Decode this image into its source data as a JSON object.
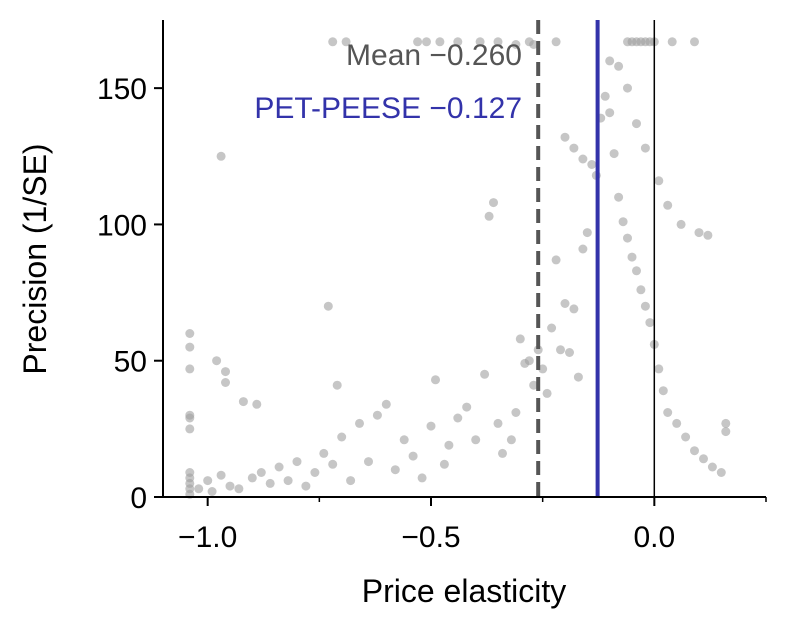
{
  "chart_data": {
    "type": "scatter",
    "title": "",
    "xlabel": "Price elasticity",
    "ylabel": "Precision (1/SE)",
    "xlim": [
      -1.1,
      0.25
    ],
    "ylim": [
      0,
      175
    ],
    "x_ticks": [
      {
        "value": -1.0,
        "label": "−1.0"
      },
      {
        "value": -0.5,
        "label": "−0.5"
      },
      {
        "value": 0.0,
        "label": "0.0"
      }
    ],
    "x_minor_ticks": [
      -0.75,
      -0.25,
      0.25
    ],
    "y_ticks": [
      {
        "value": 0,
        "label": "0"
      },
      {
        "value": 50,
        "label": "50"
      },
      {
        "value": 100,
        "label": "100"
      },
      {
        "value": 150,
        "label": "150"
      }
    ],
    "grid": false,
    "point_color": "#a0a0a0",
    "reference_lines": [
      {
        "name": "Mean",
        "x": -0.26,
        "label": "Mean −0.260",
        "style": "dashed",
        "color": "#555555"
      },
      {
        "name": "PET-PEESE",
        "x": -0.127,
        "label": "PET-PEESE −0.127",
        "style": "solid",
        "color": "#3333aa"
      },
      {
        "name": "zero",
        "x": 0.0,
        "style": "solid",
        "color": "#000000"
      }
    ],
    "points_xy": [
      [
        -1.04,
        60
      ],
      [
        -1.04,
        55
      ],
      [
        -1.04,
        47
      ],
      [
        -1.04,
        30
      ],
      [
        -1.04,
        29
      ],
      [
        -1.04,
        25
      ],
      [
        -1.04,
        9
      ],
      [
        -1.04,
        7
      ],
      [
        -1.04,
        5
      ],
      [
        -1.04,
        3
      ],
      [
        -1.04,
        1
      ],
      [
        -0.98,
        50
      ],
      [
        -0.96,
        46
      ],
      [
        -0.96,
        42
      ],
      [
        -0.92,
        35
      ],
      [
        -0.89,
        34
      ],
      [
        -0.97,
        125
      ],
      [
        -1.02,
        3
      ],
      [
        -1.0,
        6
      ],
      [
        -0.99,
        2
      ],
      [
        -0.97,
        8
      ],
      [
        -0.95,
        4
      ],
      [
        -0.93,
        3
      ],
      [
        -0.9,
        7
      ],
      [
        -0.88,
        9
      ],
      [
        -0.86,
        5
      ],
      [
        -0.84,
        11
      ],
      [
        -0.82,
        6
      ],
      [
        -0.8,
        13
      ],
      [
        -0.78,
        4
      ],
      [
        -0.76,
        9
      ],
      [
        -0.74,
        16
      ],
      [
        -0.73,
        70
      ],
      [
        -0.72,
        12
      ],
      [
        -0.71,
        41
      ],
      [
        -0.7,
        22
      ],
      [
        -0.68,
        6
      ],
      [
        -0.66,
        27
      ],
      [
        -0.64,
        13
      ],
      [
        -0.62,
        30
      ],
      [
        -0.6,
        34
      ],
      [
        -0.58,
        10
      ],
      [
        -0.56,
        21
      ],
      [
        -0.54,
        15
      ],
      [
        -0.52,
        7
      ],
      [
        -0.5,
        26
      ],
      [
        -0.49,
        43
      ],
      [
        -0.47,
        12
      ],
      [
        -0.46,
        19
      ],
      [
        -0.44,
        29
      ],
      [
        -0.42,
        33
      ],
      [
        -0.4,
        21
      ],
      [
        -0.38,
        45
      ],
      [
        -0.37,
        103
      ],
      [
        -0.36,
        108
      ],
      [
        -0.35,
        27
      ],
      [
        -0.34,
        16
      ],
      [
        -0.32,
        21
      ],
      [
        -0.31,
        31
      ],
      [
        -0.3,
        58
      ],
      [
        -0.29,
        49
      ],
      [
        -0.28,
        50
      ],
      [
        -0.27,
        41
      ],
      [
        -0.26,
        54
      ],
      [
        -0.25,
        47
      ],
      [
        -0.24,
        38
      ],
      [
        -0.23,
        62
      ],
      [
        -0.22,
        87
      ],
      [
        -0.21,
        54
      ],
      [
        -0.2,
        71
      ],
      [
        -0.19,
        53
      ],
      [
        -0.18,
        69
      ],
      [
        -0.17,
        44
      ],
      [
        -0.16,
        91
      ],
      [
        -0.15,
        97
      ],
      [
        -0.14,
        122
      ],
      [
        -0.13,
        118
      ],
      [
        -0.12,
        139
      ],
      [
        -0.11,
        147
      ],
      [
        -0.1,
        141
      ],
      [
        -0.09,
        126
      ],
      [
        -0.08,
        110
      ],
      [
        -0.07,
        101
      ],
      [
        -0.06,
        95
      ],
      [
        -0.05,
        88
      ],
      [
        -0.04,
        83
      ],
      [
        -0.03,
        76
      ],
      [
        -0.02,
        70
      ],
      [
        -0.01,
        64
      ],
      [
        0.0,
        56
      ],
      [
        0.01,
        47
      ],
      [
        0.02,
        39
      ],
      [
        0.03,
        31
      ],
      [
        0.05,
        27
      ],
      [
        0.07,
        22
      ],
      [
        0.09,
        17
      ],
      [
        0.11,
        14
      ],
      [
        0.13,
        11
      ],
      [
        0.15,
        9
      ],
      [
        0.16,
        27
      ],
      [
        0.16,
        24
      ],
      [
        -0.06,
        167
      ],
      [
        -0.05,
        167
      ],
      [
        -0.04,
        167
      ],
      [
        -0.03,
        167
      ],
      [
        -0.02,
        167
      ],
      [
        -0.01,
        167
      ],
      [
        0.0,
        167
      ],
      [
        0.04,
        167
      ],
      [
        0.09,
        167
      ],
      [
        -0.28,
        167
      ],
      [
        -0.22,
        167
      ],
      [
        -0.72,
        167
      ],
      [
        -0.69,
        167
      ],
      [
        -0.53,
        167
      ],
      [
        -0.51,
        167
      ],
      [
        -0.48,
        167
      ],
      [
        -0.44,
        167
      ],
      [
        -0.39,
        167
      ],
      [
        -0.35,
        167
      ],
      [
        -0.31,
        166
      ],
      [
        -0.27,
        166
      ],
      [
        -0.2,
        132
      ],
      [
        -0.18,
        128
      ],
      [
        -0.16,
        124
      ],
      [
        -0.1,
        160
      ],
      [
        -0.08,
        158
      ],
      [
        -0.06,
        150
      ],
      [
        -0.04,
        137
      ],
      [
        -0.02,
        128
      ],
      [
        0.01,
        116
      ],
      [
        0.03,
        107
      ],
      [
        0.06,
        100
      ],
      [
        0.1,
        97
      ],
      [
        0.12,
        96
      ]
    ]
  }
}
